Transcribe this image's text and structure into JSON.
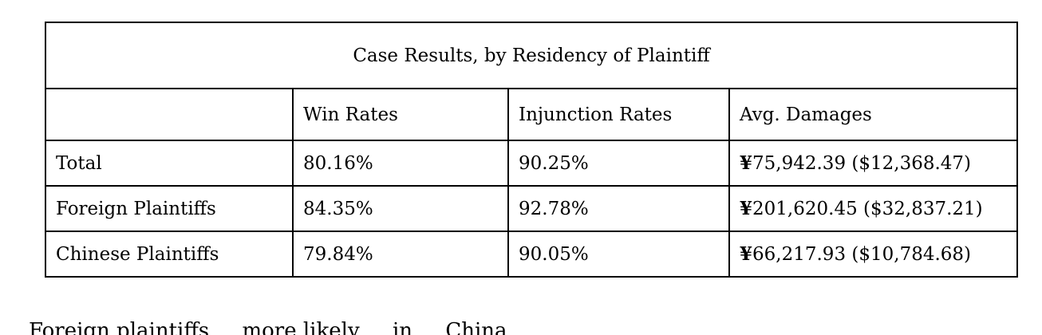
{
  "table": {
    "caption": "Case Results, by Residency of Plaintiff",
    "columns": [
      "",
      "Win Rates",
      "Injunction Rates",
      "Avg. Damages"
    ],
    "rows": [
      {
        "label": "Total",
        "win_rate": "80.16%",
        "injunction_rate": "90.25%",
        "yen_symbol": "¥",
        "avg_damages": "75,942.39 ($12,368.47)"
      },
      {
        "label": "Foreign Plaintiffs",
        "win_rate": "84.35%",
        "injunction_rate": "92.78%",
        "yen_symbol": "¥",
        "avg_damages": "201,620.45 ($32,837.21)"
      },
      {
        "label": "Chinese Plaintiffs",
        "win_rate": "79.84%",
        "injunction_rate": "90.05%",
        "yen_symbol": "¥",
        "avg_damages": "66,217.93 ($10,784.68)"
      }
    ]
  },
  "body_text": {
    "cut_off_line": "Foreign plaintiffs ... more likely ... in ... China"
  }
}
